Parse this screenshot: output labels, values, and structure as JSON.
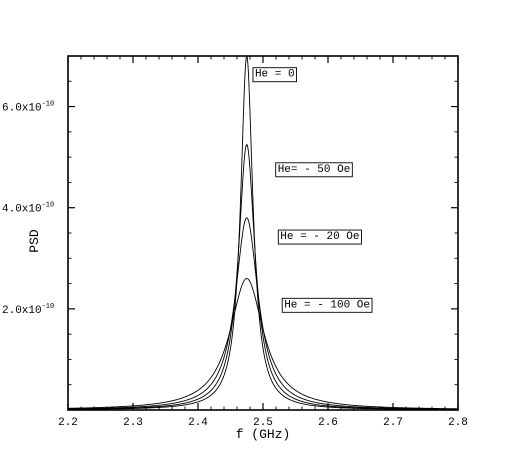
{
  "chart_data": {
    "type": "line",
    "title": "",
    "xlabel": "f (GHz)",
    "ylabel": "PSD",
    "xlim": [
      2.2,
      2.8
    ],
    "ylim": [
      0,
      7e-10
    ],
    "x_ticks": [
      2.2,
      2.3,
      2.4,
      2.5,
      2.6,
      2.7,
      2.8
    ],
    "x_tick_labels": [
      "2.2",
      "2.3",
      "2.4",
      "2.5",
      "2.6",
      "2.7",
      "2.8"
    ],
    "y_ticks": [
      2e-10,
      4e-10,
      6e-10
    ],
    "y_tick_labels": [
      {
        "mantissa": "2.0x10",
        "exponent": "-10"
      },
      {
        "mantissa": "4.0x10",
        "exponent": "-10"
      },
      {
        "mantissa": "6.0x10",
        "exponent": "-10"
      }
    ],
    "grid": false,
    "legend": "none",
    "line_color": "#000000",
    "series": [
      {
        "peak_f": 2.475,
        "peak_value": 7e-10,
        "halfwidth": 0.0115
      },
      {
        "peak_f": 2.475,
        "peak_value": 5.25e-10,
        "halfwidth": 0.0155
      },
      {
        "peak_f": 2.475,
        "peak_value": 3.8e-10,
        "halfwidth": 0.0215
      },
      {
        "peak_f": 2.475,
        "peak_value": 2.6e-10,
        "halfwidth": 0.0315
      }
    ],
    "annotations": [
      {
        "text": "He = 0",
        "x": 2.483,
        "y": 6.63e-10
      },
      {
        "text": "He= - 50 Oe",
        "x": 2.518,
        "y": 4.75e-10
      },
      {
        "text": "He = - 20 Oe",
        "x": 2.522,
        "y": 3.42e-10
      },
      {
        "text": "He = - 100 Oe",
        "x": 2.528,
        "y": 2.07e-10
      }
    ]
  }
}
